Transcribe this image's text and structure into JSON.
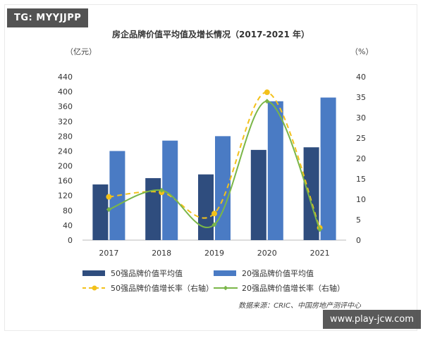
{
  "watermarks": {
    "top_left": "TG: MYYJJPP",
    "bottom_right": "www.play-jcw.com"
  },
  "chart_data": {
    "type": "bar",
    "title": "房企品牌价值平均值及增长情况（2017-2021 年）",
    "ylabel_left": "（亿元）",
    "ylabel_right": "（%）",
    "categories": [
      "2017",
      "2018",
      "2019",
      "2020",
      "2021"
    ],
    "ylim_left": [
      0,
      440
    ],
    "yticks_left": [
      0,
      40,
      80,
      120,
      160,
      200,
      240,
      280,
      320,
      360,
      400,
      440
    ],
    "ylim_right": [
      0,
      40
    ],
    "yticks_right": [
      0,
      5,
      10,
      15,
      20,
      25,
      30,
      35,
      40
    ],
    "bar_series": [
      {
        "name": "50强品牌价值平均值",
        "axis": "left",
        "color": "#2f4d7e",
        "values": [
          150,
          167,
          177,
          243,
          250
        ]
      },
      {
        "name": "20强品牌价值平均值",
        "axis": "left",
        "color": "#4a7bc4",
        "values": [
          240,
          268,
          280,
          374,
          384
        ]
      }
    ],
    "line_series": [
      {
        "name": "50强品牌价值增长率（右轴）",
        "axis": "right",
        "color": "#f3c11a",
        "style": "dashed",
        "marker": "circle",
        "values": [
          10.6,
          11.7,
          6.5,
          36.2,
          3.0
        ]
      },
      {
        "name": "20强品牌价值增长率（右轴）",
        "axis": "right",
        "color": "#7ab648",
        "style": "solid",
        "marker": "diamond",
        "values": [
          7.5,
          12.2,
          3.8,
          34.0,
          2.6
        ]
      }
    ],
    "grid": false,
    "legend_position": "bottom",
    "source": "数据来源：CRIC、中国房地产测评中心"
  }
}
